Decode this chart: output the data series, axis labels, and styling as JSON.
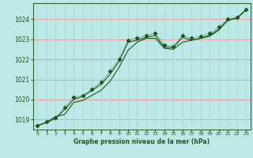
{
  "title": "Graphe pression niveau de la mer (hPa)",
  "bg_color": "#bde8e8",
  "grid_color_h": "#f0a0a0",
  "grid_color_v": "#a8d8d8",
  "line_color": "#1a5c1a",
  "ylim": [
    1018.5,
    1024.8
  ],
  "xlim": [
    -0.5,
    23.5
  ],
  "yticks": [
    1019,
    1020,
    1021,
    1022,
    1023,
    1024
  ],
  "xticks": [
    0,
    1,
    2,
    3,
    4,
    5,
    6,
    7,
    8,
    9,
    10,
    11,
    12,
    13,
    14,
    15,
    16,
    17,
    18,
    19,
    20,
    21,
    22,
    23
  ],
  "series1_x": [
    0,
    1,
    2,
    3,
    4,
    5,
    6,
    7,
    8,
    9,
    10,
    11,
    12,
    13,
    14,
    15,
    16,
    17,
    18,
    19,
    20,
    21,
    22,
    23
  ],
  "series1_y": [
    1018.7,
    1018.9,
    1019.1,
    1019.6,
    1020.1,
    1020.2,
    1020.5,
    1020.85,
    1021.4,
    1022.0,
    1022.95,
    1023.05,
    1023.2,
    1023.3,
    1022.7,
    1022.65,
    1023.2,
    1023.05,
    1023.15,
    1023.3,
    1023.6,
    1024.0,
    1024.1,
    1024.5
  ],
  "series2_x": [
    0,
    1,
    2,
    3,
    4,
    5,
    6,
    7,
    8,
    9,
    10,
    11,
    12,
    13,
    14,
    15,
    16,
    17,
    18,
    19,
    20,
    21,
    22,
    23
  ],
  "series2_y": [
    1018.7,
    1018.85,
    1019.05,
    1019.5,
    1020.0,
    1020.15,
    1020.45,
    1020.75,
    1021.25,
    1021.9,
    1022.85,
    1022.95,
    1023.1,
    1023.2,
    1022.6,
    1022.6,
    1023.1,
    1022.95,
    1023.05,
    1023.2,
    1023.5,
    1023.95,
    1024.05,
    1024.45
  ],
  "series3_x": [
    0,
    1,
    2,
    3,
    4,
    5,
    6,
    7,
    8,
    9,
    10,
    11,
    12,
    13,
    14,
    15,
    16,
    17,
    18,
    19,
    20,
    21,
    22,
    23
  ],
  "series3_y": [
    1018.7,
    1018.85,
    1019.15,
    1019.25,
    1019.85,
    1019.95,
    1020.2,
    1020.45,
    1020.9,
    1021.6,
    1022.45,
    1022.85,
    1023.05,
    1023.05,
    1022.55,
    1022.5,
    1022.85,
    1022.95,
    1023.05,
    1023.15,
    1023.45,
    1023.95,
    1024.05,
    1024.45
  ]
}
